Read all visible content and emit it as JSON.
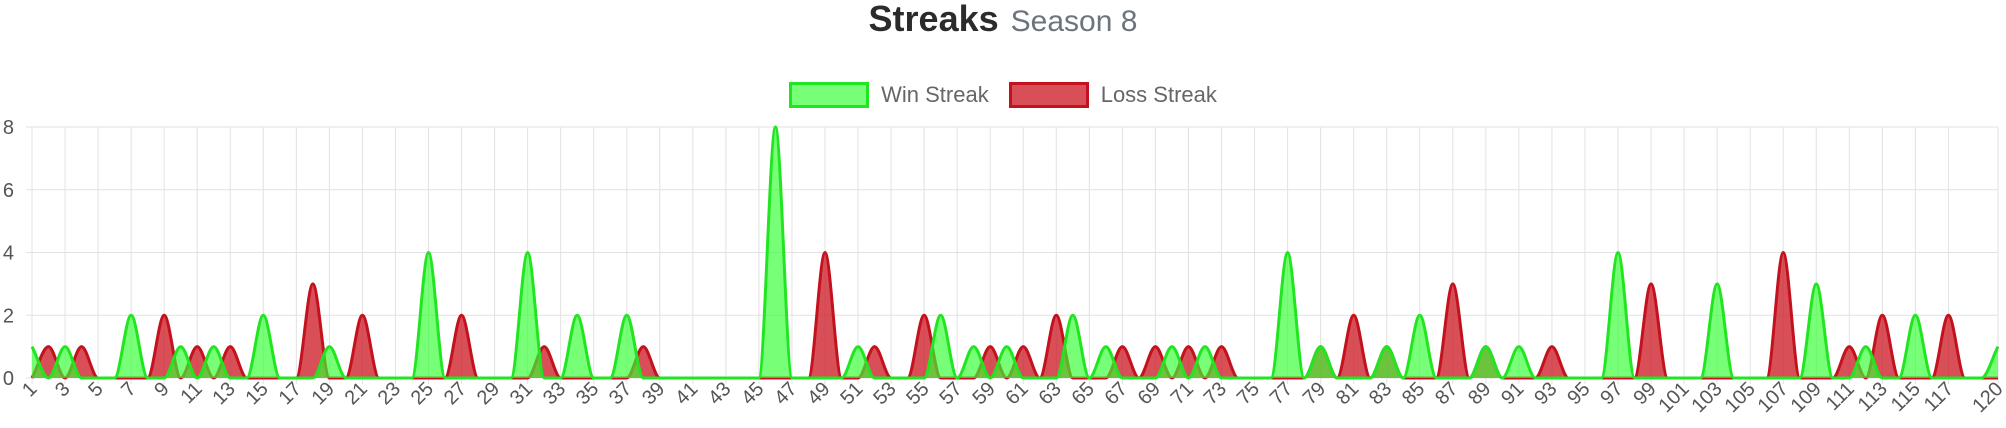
{
  "header": {
    "title": "Streaks",
    "subtitle": "Season 8"
  },
  "colors": {
    "win_fill": "rgba(50,255,50,0.66)",
    "win_line": "#22e522",
    "loss_fill": "rgba(205,30,40,0.78)",
    "loss_line": "#c3121d",
    "grid": "#e2e2e2"
  },
  "chart_data": {
    "type": "area",
    "title": "Streaks",
    "subtitle": "Season 8",
    "x": [
      1,
      2,
      3,
      4,
      5,
      6,
      7,
      8,
      9,
      10,
      11,
      12,
      13,
      14,
      15,
      16,
      17,
      18,
      19,
      20,
      21,
      22,
      23,
      24,
      25,
      26,
      27,
      28,
      29,
      30,
      31,
      32,
      33,
      34,
      35,
      36,
      37,
      38,
      39,
      40,
      41,
      42,
      43,
      44,
      45,
      46,
      47,
      48,
      49,
      50,
      51,
      52,
      53,
      54,
      55,
      56,
      57,
      58,
      59,
      60,
      61,
      62,
      63,
      64,
      65,
      66,
      67,
      68,
      69,
      70,
      71,
      72,
      73,
      74,
      75,
      76,
      77,
      78,
      79,
      80,
      81,
      82,
      83,
      84,
      85,
      86,
      87,
      88,
      89,
      90,
      91,
      92,
      93,
      94,
      95,
      96,
      97,
      98,
      99,
      100,
      101,
      102,
      103,
      104,
      105,
      106,
      107,
      108,
      109,
      110,
      111,
      112,
      113,
      114,
      115,
      116,
      117,
      118,
      119,
      120
    ],
    "x_tick_labels": [
      "1",
      "3",
      "5",
      "7",
      "9",
      "11",
      "13",
      "15",
      "17",
      "19",
      "21",
      "23",
      "25",
      "27",
      "29",
      "31",
      "33",
      "35",
      "37",
      "39",
      "41",
      "43",
      "45",
      "47",
      "49",
      "51",
      "53",
      "55",
      "57",
      "59",
      "61",
      "63",
      "65",
      "67",
      "69",
      "71",
      "73",
      "75",
      "77",
      "79",
      "81",
      "83",
      "85",
      "87",
      "89",
      "91",
      "93",
      "95",
      "97",
      "99",
      "101",
      "103",
      "105",
      "107",
      "109",
      "111",
      "113",
      "115",
      "117",
      "120"
    ],
    "y_tick_labels": [
      "0",
      "2",
      "4",
      "6",
      "8"
    ],
    "ylim": [
      0,
      8
    ],
    "grid": true,
    "legend_position": "top",
    "series": [
      {
        "name": "Win Streak",
        "values": [
          1,
          0,
          1,
          0,
          0,
          0,
          2,
          0,
          0,
          1,
          0,
          1,
          0,
          0,
          2,
          0,
          0,
          0,
          1,
          0,
          0,
          0,
          0,
          0,
          4,
          0,
          0,
          0,
          0,
          0,
          4,
          0,
          0,
          2,
          0,
          0,
          2,
          0,
          0,
          0,
          0,
          0,
          0,
          0,
          0,
          8,
          0,
          0,
          0,
          0,
          1,
          0,
          0,
          0,
          0,
          2,
          0,
          1,
          0,
          1,
          0,
          0,
          0,
          2,
          0,
          1,
          0,
          0,
          0,
          1,
          0,
          1,
          0,
          0,
          0,
          0,
          4,
          0,
          1,
          0,
          0,
          0,
          1,
          0,
          2,
          0,
          0,
          0,
          1,
          0,
          1,
          0,
          0,
          0,
          0,
          0,
          4,
          0,
          0,
          0,
          0,
          0,
          3,
          0,
          0,
          0,
          0,
          0,
          3,
          0,
          0,
          1,
          0,
          0,
          2,
          0,
          0,
          0,
          0,
          1
        ]
      },
      {
        "name": "Loss Streak",
        "values": [
          0,
          1,
          0,
          1,
          0,
          0,
          0,
          0,
          2,
          0,
          1,
          0,
          1,
          0,
          0,
          0,
          0,
          3,
          0,
          0,
          2,
          0,
          0,
          0,
          0,
          0,
          2,
          0,
          0,
          0,
          0,
          1,
          0,
          0,
          0,
          0,
          0,
          1,
          0,
          0,
          0,
          0,
          0,
          0,
          0,
          0,
          0,
          0,
          4,
          0,
          0,
          1,
          0,
          0,
          2,
          0,
          0,
          0,
          1,
          0,
          1,
          0,
          2,
          0,
          0,
          0,
          1,
          0,
          1,
          0,
          1,
          0,
          1,
          0,
          0,
          0,
          0,
          0,
          1,
          0,
          2,
          0,
          1,
          0,
          0,
          0,
          3,
          0,
          1,
          0,
          0,
          0,
          1,
          0,
          0,
          0,
          0,
          0,
          3,
          0,
          0,
          0,
          0,
          0,
          0,
          0,
          4,
          0,
          0,
          0,
          1,
          0,
          2,
          0,
          0,
          0,
          2,
          0,
          0,
          0
        ]
      }
    ]
  }
}
